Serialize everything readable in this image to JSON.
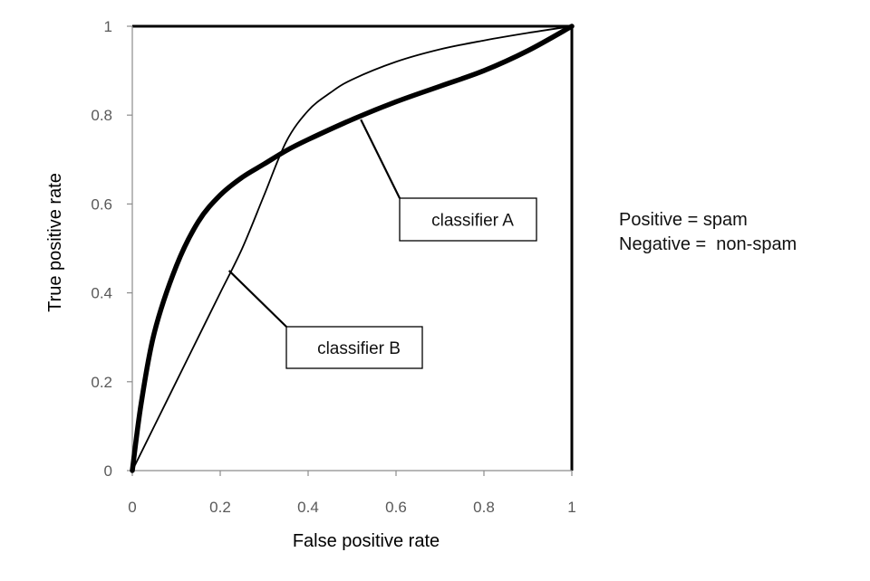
{
  "chart_data": {
    "type": "line",
    "title": "",
    "xlabel": "False positive rate",
    "ylabel": "True positive rate",
    "xlim": [
      0,
      1
    ],
    "ylim": [
      0,
      1
    ],
    "x_ticks": [
      "0",
      "0.2",
      "0.4",
      "0.6",
      "0.8",
      "1"
    ],
    "y_ticks": [
      "0",
      "0.2",
      "0.4",
      "0.6",
      "0.8",
      "1"
    ],
    "grid": false,
    "series": [
      {
        "name": "classifier A",
        "color": "#000000",
        "style": "thick",
        "x": [
          0,
          0.02,
          0.05,
          0.1,
          0.15,
          0.2,
          0.25,
          0.3,
          0.35,
          0.4,
          0.5,
          0.6,
          0.7,
          0.8,
          0.9,
          1.0
        ],
        "y": [
          0,
          0.15,
          0.31,
          0.46,
          0.56,
          0.62,
          0.66,
          0.69,
          0.72,
          0.745,
          0.79,
          0.83,
          0.865,
          0.9,
          0.945,
          1.0
        ]
      },
      {
        "name": "classifier B",
        "color": "#000000",
        "style": "thin",
        "x": [
          0,
          0.05,
          0.1,
          0.15,
          0.2,
          0.25,
          0.3,
          0.35,
          0.4,
          0.45,
          0.5,
          0.6,
          0.7,
          0.8,
          0.9,
          1.0
        ],
        "y": [
          0,
          0.1,
          0.2,
          0.3,
          0.4,
          0.5,
          0.62,
          0.74,
          0.81,
          0.85,
          0.88,
          0.92,
          0.948,
          0.968,
          0.985,
          1.0
        ]
      }
    ],
    "annotations": [
      {
        "text": "classifier A",
        "series": "classifier A",
        "point": [
          0.52,
          0.79
        ]
      },
      {
        "text": "classifier B",
        "series": "classifier B",
        "point": [
          0.22,
          0.45
        ]
      }
    ],
    "side_note": [
      "Positive = spam",
      "Negative =  non-spam"
    ]
  }
}
